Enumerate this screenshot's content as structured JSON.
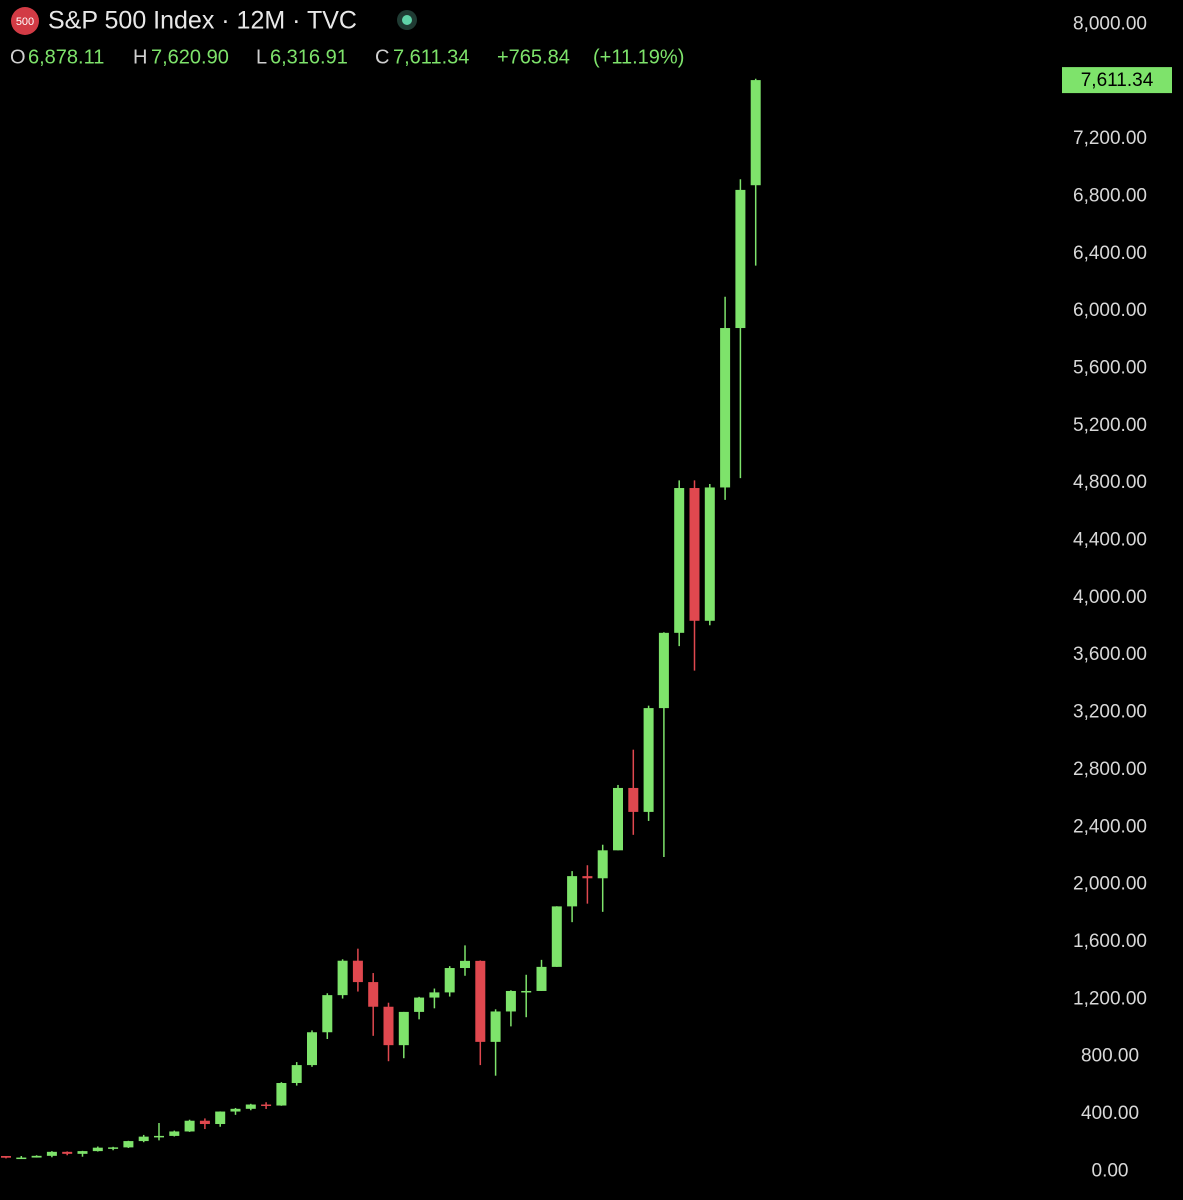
{
  "chart_data": {
    "type": "candlestick",
    "title": "S&P 500 Index · 12M · TVC",
    "symbol_icon": "500",
    "header": {
      "open_prefix": "O",
      "open": "6,878.11",
      "high_prefix": "H",
      "high": "7,620.90",
      "low_prefix": "L",
      "low": "6,316.91",
      "close_prefix": "C",
      "close": "7,611.34",
      "change": "+765.84",
      "change_pct": "(+11.19%)"
    },
    "last_price_label": "7,611.34",
    "up_color": "#7ee36b",
    "down_color": "#e0484f",
    "categories": [
      null,
      null,
      null,
      null,
      null,
      null,
      null,
      null,
      null,
      null,
      null,
      null,
      null,
      null,
      null,
      null,
      null,
      null,
      null,
      null,
      null,
      null,
      null,
      null,
      null,
      null,
      null,
      null,
      null,
      null,
      null,
      null,
      null,
      null,
      null,
      null,
      null,
      null,
      null,
      null,
      null,
      null,
      null,
      null,
      null,
      null,
      null,
      null,
      null,
      null
    ],
    "open": [
      107,
      95,
      96,
      108,
      136,
      122,
      141,
      165,
      167,
      211,
      242,
      247,
      278,
      353,
      330,
      417,
      436,
      466,
      459,
      616,
      741,
      970,
      1229,
      1469,
      1320,
      1148,
      880,
      1112,
      1212,
      1248,
      1418,
      1468,
      903,
      1115,
      1258,
      1258,
      1426,
      1848,
      2059,
      2044,
      2239,
      2674,
      2507,
      3231,
      3756,
      4766,
      3840,
      4770,
      5882,
      6878.11
    ],
    "high": [
      107,
      107,
      112,
      141,
      139,
      143,
      173,
      171,
      213,
      254,
      337,
      284,
      360,
      369,
      418,
      442,
      471,
      482,
      622,
      762,
      983,
      1242,
      1479,
      1553,
      1383,
      1176,
      1112,
      1217,
      1275,
      1431,
      1576,
      1471,
      1130,
      1263,
      1371,
      1475,
      1849,
      2094,
      2135,
      2278,
      2695,
      2941,
      3248,
      3760,
      4819,
      4819,
      4794,
      6100,
      6920,
      7620.9
    ],
    "low": [
      90,
      87,
      96,
      98,
      112,
      102,
      138,
      147,
      163,
      203,
      216,
      243,
      275,
      295,
      311,
      394,
      426,
      435,
      457,
      598,
      729,
      923,
      1205,
      1254,
      945,
      768,
      789,
      1060,
      1137,
      1219,
      1364,
      741,
      667,
      1011,
      1075,
      1258,
      1426,
      1738,
      1867,
      1810,
      2239,
      2347,
      2444,
      2192,
      3663,
      3492,
      3809,
      4683,
      4835,
      6316.91
    ],
    "close": [
      95,
      96,
      108,
      136,
      122,
      141,
      165,
      167,
      211,
      242,
      247,
      278,
      353,
      330,
      417,
      436,
      466,
      459,
      616,
      741,
      970,
      1229,
      1469,
      1320,
      1148,
      880,
      1112,
      1212,
      1248,
      1418,
      1468,
      903,
      1115,
      1258,
      1258,
      1426,
      1848,
      2059,
      2044,
      2239,
      2674,
      2507,
      3231,
      3756,
      4766,
      3840,
      4770,
      5882,
      6845.5,
      7611.34
    ],
    "ylim": [
      -200,
      8170
    ],
    "yticks": [
      {
        "value": 0,
        "label": "0.00"
      },
      {
        "value": 400,
        "label": "400.00"
      },
      {
        "value": 800,
        "label": "800.00"
      },
      {
        "value": 1200,
        "label": "1,200.00"
      },
      {
        "value": 1600,
        "label": "1,600.00"
      },
      {
        "value": 2000,
        "label": "2,000.00"
      },
      {
        "value": 2400,
        "label": "2,400.00"
      },
      {
        "value": 2800,
        "label": "2,800.00"
      },
      {
        "value": 3200,
        "label": "3,200.00"
      },
      {
        "value": 3600,
        "label": "3,600.00"
      },
      {
        "value": 4000,
        "label": "4,000.00"
      },
      {
        "value": 4400,
        "label": "4,400.00"
      },
      {
        "value": 4800,
        "label": "4,800.00"
      },
      {
        "value": 5200,
        "label": "5,200.00"
      },
      {
        "value": 5600,
        "label": "5,600.00"
      },
      {
        "value": 6000,
        "label": "6,000.00"
      },
      {
        "value": 6400,
        "label": "6,400.00"
      },
      {
        "value": 6800,
        "label": "6,800.00"
      },
      {
        "value": 7200,
        "label": "7,200.00"
      },
      {
        "value": 8000,
        "label": "8,000.00"
      }
    ]
  }
}
